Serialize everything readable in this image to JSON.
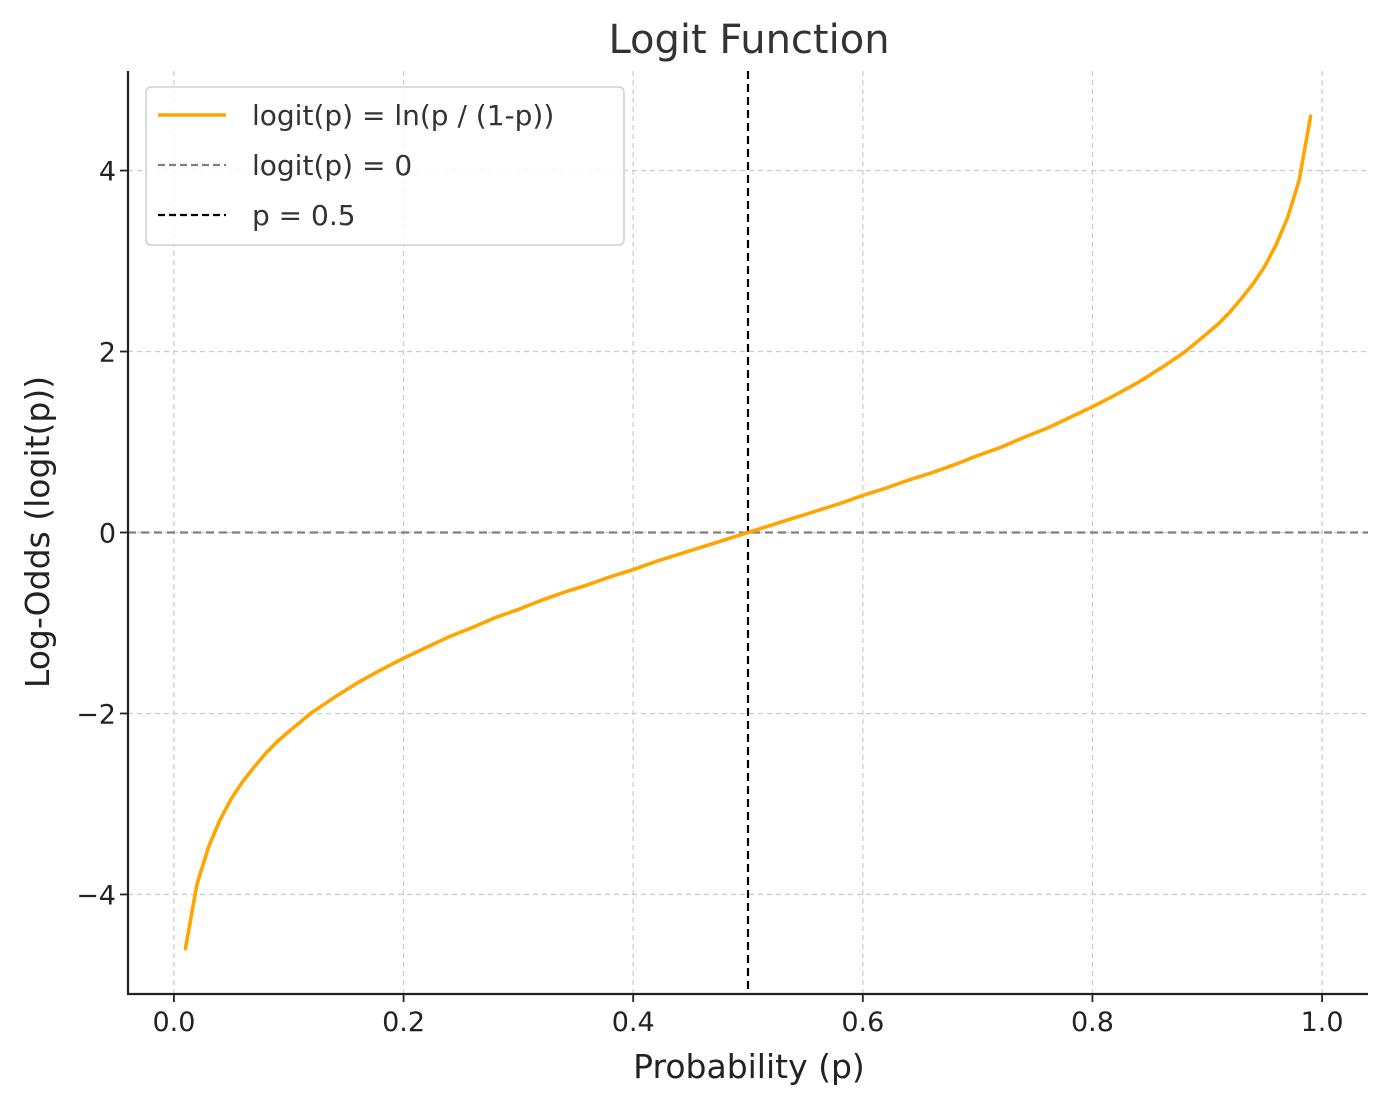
{
  "chart_data": {
    "type": "line",
    "title": "Logit Function",
    "xlabel": "Probability (p)",
    "ylabel": "Log-Odds (logit(p))",
    "xlim": [
      -0.04,
      1.04
    ],
    "ylim": [
      -5.1,
      5.1
    ],
    "xticks": [
      0.0,
      0.2,
      0.4,
      0.6,
      0.8,
      1.0
    ],
    "xtick_labels": [
      "0.0",
      "0.2",
      "0.4",
      "0.6",
      "0.8",
      "1.0"
    ],
    "yticks": [
      -4,
      -2,
      0,
      2,
      4
    ],
    "ytick_labels": [
      "−4",
      "−2",
      "0",
      "2",
      "4"
    ],
    "grid": true,
    "legend_position": "top-left",
    "series": [
      {
        "name": "logit(p) = ln(p / (1-p))",
        "color": "#FFA500",
        "style": "solid",
        "x": [
          0.01,
          0.02,
          0.03,
          0.04,
          0.05,
          0.06,
          0.07,
          0.08,
          0.09,
          0.1,
          0.12,
          0.14,
          0.16,
          0.18,
          0.2,
          0.22,
          0.24,
          0.26,
          0.28,
          0.3,
          0.32,
          0.34,
          0.36,
          0.38,
          0.4,
          0.42,
          0.44,
          0.46,
          0.48,
          0.5,
          0.52,
          0.54,
          0.56,
          0.58,
          0.6,
          0.62,
          0.64,
          0.66,
          0.68,
          0.7,
          0.72,
          0.74,
          0.76,
          0.78,
          0.8,
          0.82,
          0.84,
          0.86,
          0.88,
          0.9,
          0.91,
          0.92,
          0.93,
          0.94,
          0.95,
          0.96,
          0.97,
          0.98,
          0.99
        ],
        "y": [
          -4.6,
          -3.89,
          -3.48,
          -3.18,
          -2.94,
          -2.75,
          -2.59,
          -2.44,
          -2.31,
          -2.2,
          -1.99,
          -1.82,
          -1.66,
          -1.52,
          -1.39,
          -1.27,
          -1.15,
          -1.05,
          -0.94,
          -0.85,
          -0.75,
          -0.66,
          -0.58,
          -0.49,
          -0.41,
          -0.32,
          -0.24,
          -0.16,
          -0.08,
          0.0,
          0.08,
          0.16,
          0.24,
          0.32,
          0.41,
          0.49,
          0.58,
          0.66,
          0.75,
          0.85,
          0.94,
          1.05,
          1.15,
          1.27,
          1.39,
          1.52,
          1.66,
          1.82,
          1.99,
          2.2,
          2.31,
          2.44,
          2.59,
          2.75,
          2.94,
          3.18,
          3.48,
          3.89,
          4.6
        ]
      },
      {
        "name": "logit(p) = 0",
        "color": "#808080",
        "style": "dashed",
        "orientation": "horizontal",
        "value": 0
      },
      {
        "name": "p = 0.5",
        "color": "#000000",
        "style": "dashed",
        "orientation": "vertical",
        "value": 0.5
      }
    ]
  }
}
